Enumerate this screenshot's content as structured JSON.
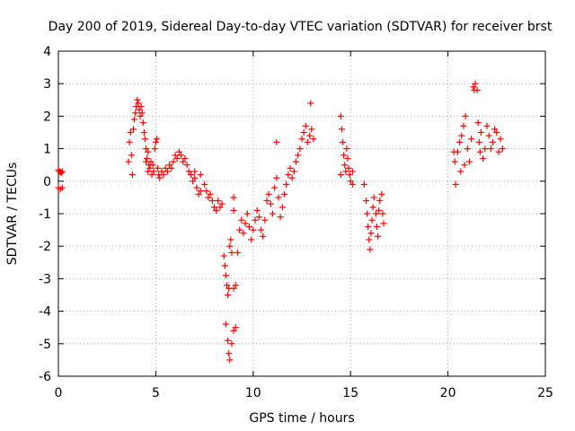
{
  "chart_data": {
    "type": "scatter",
    "title": "Day 200 of 2019, Sidereal Day-to-day VTEC variation (SDTVAR) for receiver brst",
    "xlabel": "GPS time / hours",
    "ylabel": "SDTVAR / TECUs",
    "xlim": [
      0,
      25
    ],
    "ylim": [
      -6,
      4
    ],
    "xticks": [
      "0",
      "5",
      "10",
      "15",
      "20",
      "25"
    ],
    "yticks": [
      "-6",
      "-5",
      "-4",
      "-3",
      "-2",
      "-1",
      "0",
      "1",
      "2",
      "3",
      "4"
    ],
    "grid": true,
    "marker": "+",
    "color": "#ff0000",
    "series": [
      {
        "name": "SDTVAR",
        "points": [
          [
            0.0,
            0.35
          ],
          [
            0.05,
            0.3
          ],
          [
            0.1,
            0.28
          ],
          [
            0.15,
            0.25
          ],
          [
            0.2,
            0.3
          ],
          [
            0.0,
            -0.2
          ],
          [
            0.1,
            -0.25
          ],
          [
            0.2,
            -0.2
          ],
          [
            3.6,
            0.6
          ],
          [
            3.65,
            1.2
          ],
          [
            3.7,
            1.5
          ],
          [
            3.75,
            0.8
          ],
          [
            3.8,
            0.2
          ],
          [
            3.85,
            1.6
          ],
          [
            3.9,
            1.9
          ],
          [
            3.95,
            2.1
          ],
          [
            4.0,
            2.3
          ],
          [
            4.05,
            2.5
          ],
          [
            4.1,
            2.4
          ],
          [
            4.15,
            2.2
          ],
          [
            4.2,
            2.0
          ],
          [
            4.25,
            2.3
          ],
          [
            4.3,
            2.1
          ],
          [
            4.35,
            1.8
          ],
          [
            4.4,
            1.5
          ],
          [
            4.45,
            1.3
          ],
          [
            4.5,
            1.0
          ],
          [
            4.5,
            0.6
          ],
          [
            4.55,
            0.7
          ],
          [
            4.6,
            0.9
          ],
          [
            4.6,
            0.3
          ],
          [
            4.65,
            0.5
          ],
          [
            4.7,
            0.4
          ],
          [
            4.75,
            0.6
          ],
          [
            4.8,
            0.2
          ],
          [
            4.85,
            0.5
          ],
          [
            4.9,
            0.3
          ],
          [
            4.95,
            1.0
          ],
          [
            5.0,
            1.2
          ],
          [
            5.05,
            1.3
          ],
          [
            5.1,
            0.4
          ],
          [
            5.15,
            0.2
          ],
          [
            5.2,
            0.1
          ],
          [
            5.3,
            0.3
          ],
          [
            5.4,
            0.2
          ],
          [
            5.5,
            0.4
          ],
          [
            5.6,
            0.3
          ],
          [
            5.7,
            0.5
          ],
          [
            5.8,
            0.4
          ],
          [
            5.9,
            0.6
          ],
          [
            6.0,
            0.8
          ],
          [
            6.1,
            0.7
          ],
          [
            6.2,
            0.9
          ],
          [
            6.3,
            0.8
          ],
          [
            6.4,
            0.6
          ],
          [
            6.5,
            0.7
          ],
          [
            6.6,
            0.5
          ],
          [
            6.7,
            0.3
          ],
          [
            6.8,
            0.2
          ],
          [
            6.9,
            0.0
          ],
          [
            7.0,
            0.1
          ],
          [
            7.1,
            -0.2
          ],
          [
            7.2,
            -0.4
          ],
          [
            7.3,
            -0.3
          ],
          [
            7.0,
            0.3
          ],
          [
            7.3,
            0.2
          ],
          [
            7.5,
            -0.1
          ],
          [
            7.6,
            -0.3
          ],
          [
            7.7,
            -0.5
          ],
          [
            7.8,
            -0.4
          ],
          [
            7.9,
            -0.6
          ],
          [
            8.0,
            -0.8
          ],
          [
            8.1,
            -0.9
          ],
          [
            8.2,
            -0.6
          ],
          [
            8.3,
            -0.8
          ],
          [
            8.4,
            -0.7
          ],
          [
            8.5,
            -2.3
          ],
          [
            8.55,
            -2.6
          ],
          [
            8.6,
            -2.9
          ],
          [
            8.65,
            -3.2
          ],
          [
            8.7,
            -3.5
          ],
          [
            8.75,
            -3.3
          ],
          [
            8.8,
            -2.0
          ],
          [
            8.85,
            -1.8
          ],
          [
            8.9,
            -2.2
          ],
          [
            9.0,
            -3.3
          ],
          [
            9.1,
            -3.2
          ],
          [
            8.6,
            -4.4
          ],
          [
            8.7,
            -4.9
          ],
          [
            8.75,
            -5.3
          ],
          [
            8.8,
            -5.5
          ],
          [
            8.9,
            -5.0
          ],
          [
            9.0,
            -4.6
          ],
          [
            9.1,
            -4.5
          ],
          [
            9.2,
            -2.2
          ],
          [
            9.3,
            -1.5
          ],
          [
            9.4,
            -1.2
          ],
          [
            9.5,
            -1.6
          ],
          [
            9.6,
            -1.3
          ],
          [
            9.7,
            -1.0
          ],
          [
            9.8,
            -1.4
          ],
          [
            9.9,
            -1.8
          ],
          [
            10.0,
            -1.5
          ],
          [
            10.1,
            -1.2
          ],
          [
            10.2,
            -0.9
          ],
          [
            10.3,
            -1.1
          ],
          [
            10.4,
            -1.5
          ],
          [
            10.5,
            -1.7
          ],
          [
            10.6,
            -1.2
          ],
          [
            10.7,
            -0.6
          ],
          [
            10.8,
            -0.4
          ],
          [
            10.9,
            -0.7
          ],
          [
            11.0,
            -1.0
          ],
          [
            11.1,
            -0.2
          ],
          [
            11.2,
            0.1
          ],
          [
            11.3,
            -0.5
          ],
          [
            11.4,
            -1.1
          ],
          [
            11.5,
            -0.8
          ],
          [
            11.6,
            -0.4
          ],
          [
            11.7,
            -0.1
          ],
          [
            11.8,
            0.2
          ],
          [
            11.9,
            0.4
          ],
          [
            12.0,
            0.1
          ],
          [
            12.1,
            0.3
          ],
          [
            12.2,
            0.6
          ],
          [
            12.3,
            0.8
          ],
          [
            12.4,
            1.0
          ],
          [
            12.5,
            1.3
          ],
          [
            12.6,
            1.5
          ],
          [
            12.7,
            1.7
          ],
          [
            12.8,
            1.2
          ],
          [
            12.9,
            1.4
          ],
          [
            13.0,
            1.6
          ],
          [
            13.1,
            1.3
          ],
          [
            12.95,
            2.4
          ],
          [
            11.2,
            1.2
          ],
          [
            9.0,
            -0.5
          ],
          [
            9.0,
            -0.9
          ],
          [
            14.5,
            2.0
          ],
          [
            14.5,
            0.2
          ],
          [
            14.55,
            1.6
          ],
          [
            14.6,
            1.2
          ],
          [
            14.65,
            0.8
          ],
          [
            14.7,
            0.5
          ],
          [
            14.75,
            0.3
          ],
          [
            14.8,
            1.0
          ],
          [
            14.85,
            0.7
          ],
          [
            14.9,
            0.4
          ],
          [
            14.95,
            0.2
          ],
          [
            15.0,
            0.0
          ],
          [
            15.1,
            -0.1
          ],
          [
            15.1,
            0.3
          ],
          [
            15.7,
            -0.1
          ],
          [
            15.8,
            -0.6
          ],
          [
            15.85,
            -1.0
          ],
          [
            15.9,
            -1.4
          ],
          [
            15.95,
            -1.8
          ],
          [
            16.0,
            -2.1
          ],
          [
            16.05,
            -1.6
          ],
          [
            16.1,
            -1.2
          ],
          [
            16.15,
            -0.8
          ],
          [
            16.2,
            -0.5
          ],
          [
            16.3,
            -1.0
          ],
          [
            16.35,
            -1.4
          ],
          [
            16.4,
            -1.7
          ],
          [
            16.45,
            -0.9
          ],
          [
            16.5,
            -0.6
          ],
          [
            16.6,
            -0.4
          ],
          [
            16.65,
            -1.0
          ],
          [
            16.7,
            -1.3
          ],
          [
            20.3,
            0.9
          ],
          [
            20.35,
            0.6
          ],
          [
            20.4,
            -0.1
          ],
          [
            20.5,
            0.9
          ],
          [
            20.6,
            1.2
          ],
          [
            20.65,
            0.3
          ],
          [
            20.7,
            1.4
          ],
          [
            20.8,
            1.7
          ],
          [
            20.85,
            0.5
          ],
          [
            20.9,
            2.0
          ],
          [
            21.0,
            1.0
          ],
          [
            21.1,
            0.6
          ],
          [
            21.2,
            1.3
          ],
          [
            21.3,
            2.9
          ],
          [
            21.35,
            2.8
          ],
          [
            21.4,
            3.0
          ],
          [
            21.5,
            2.8
          ],
          [
            21.55,
            1.8
          ],
          [
            21.6,
            1.2
          ],
          [
            21.65,
            0.9
          ],
          [
            21.7,
            1.5
          ],
          [
            21.8,
            0.7
          ],
          [
            21.9,
            1.0
          ],
          [
            22.0,
            1.7
          ],
          [
            22.1,
            1.4
          ],
          [
            22.2,
            1.0
          ],
          [
            22.3,
            1.2
          ],
          [
            22.4,
            1.6
          ],
          [
            22.5,
            1.5
          ],
          [
            22.6,
            0.9
          ],
          [
            22.7,
            1.3
          ],
          [
            22.8,
            1.0
          ]
        ]
      }
    ]
  }
}
